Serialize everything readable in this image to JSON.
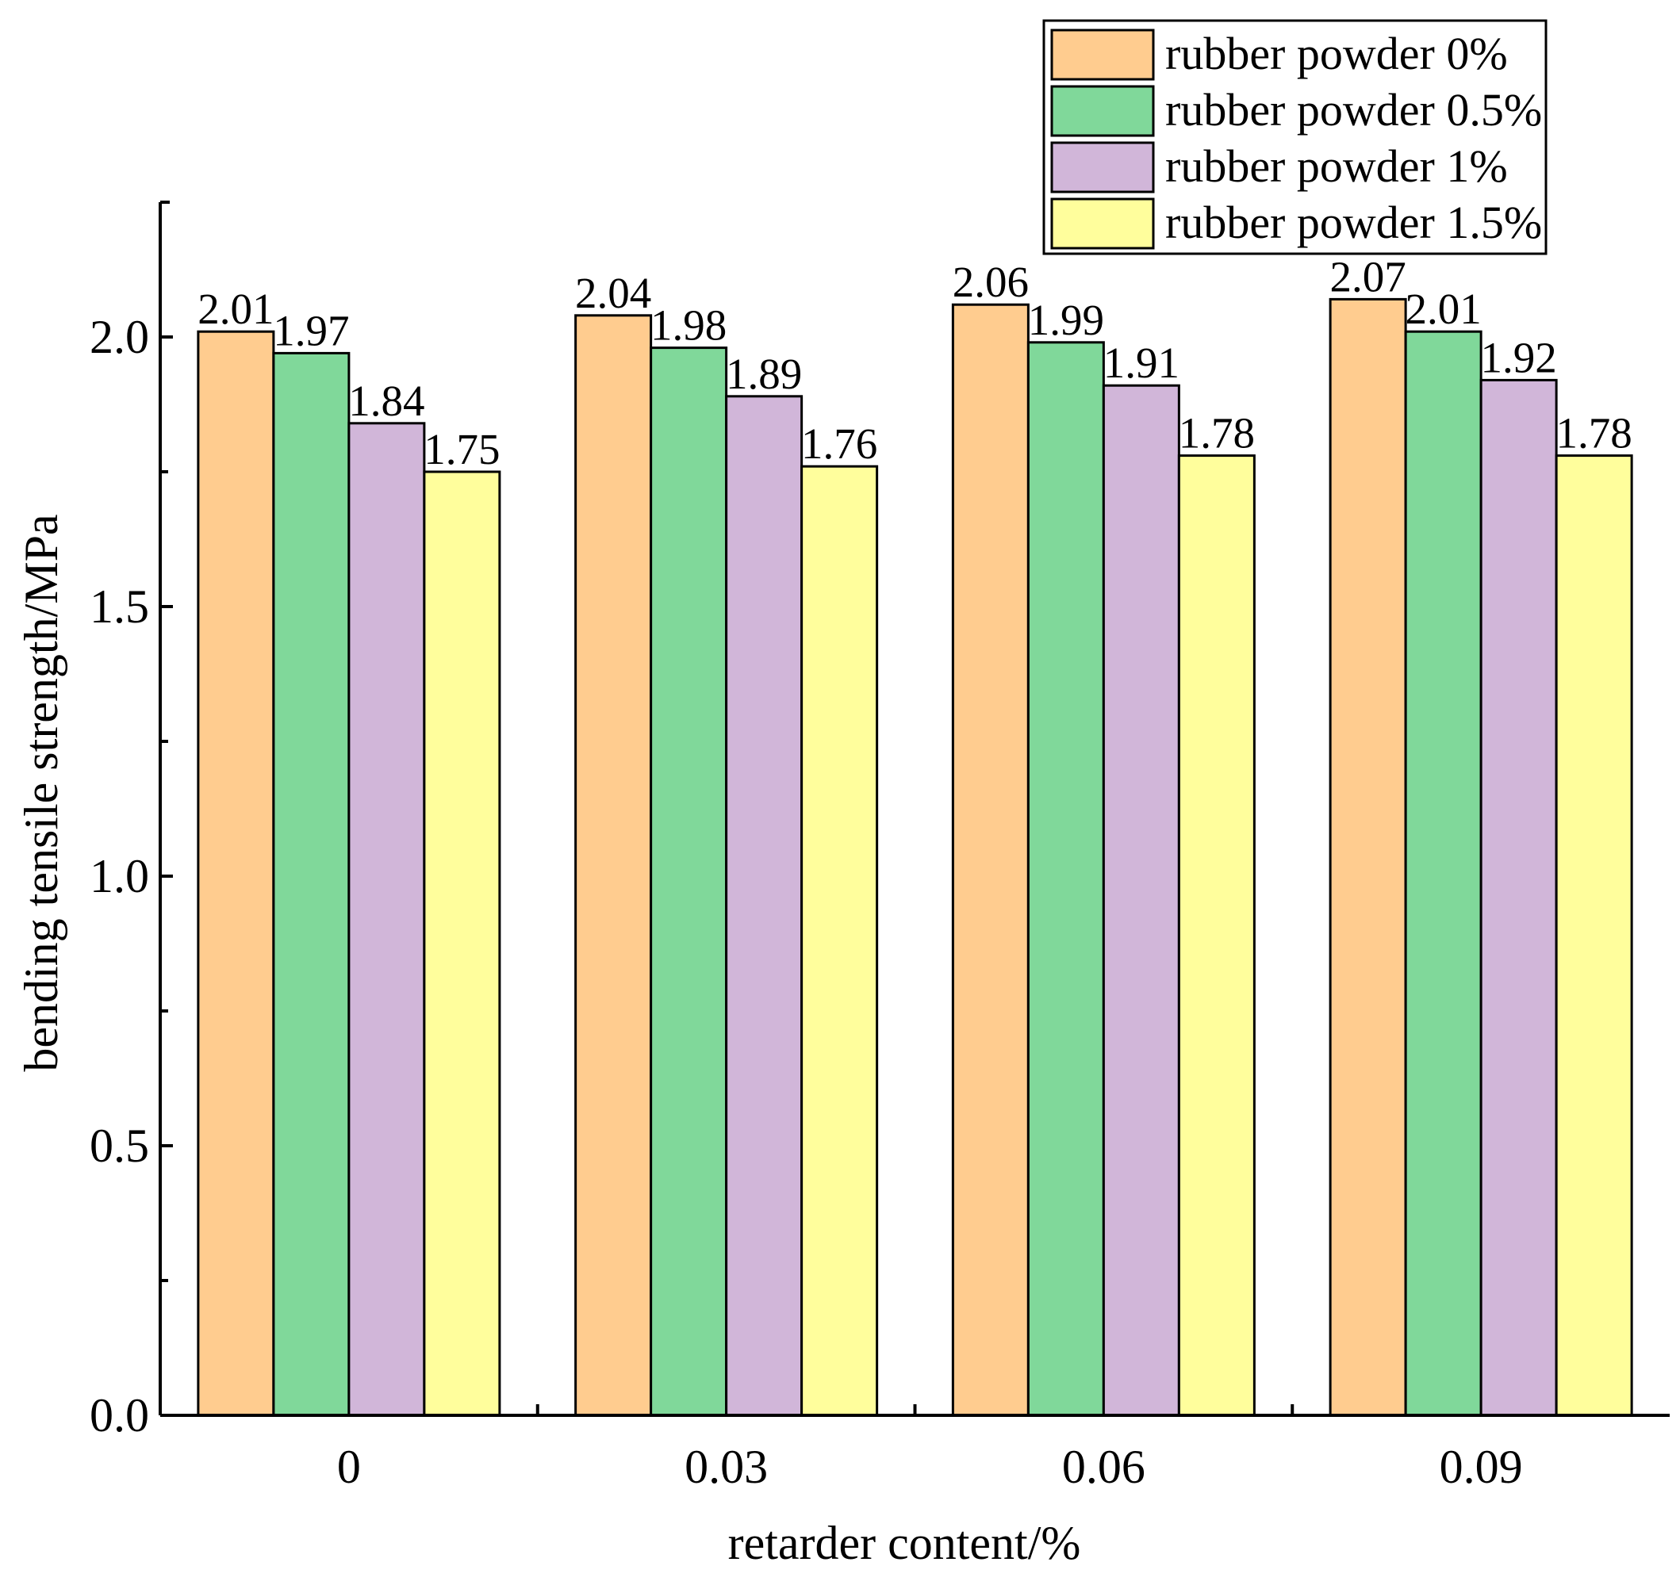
{
  "chart_data": {
    "type": "bar",
    "title": "",
    "xlabel": "retarder content/%",
    "ylabel": "bending tensile strength/MPa",
    "categories": [
      "0",
      "0.03",
      "0.06",
      "0.09"
    ],
    "series": [
      {
        "name": "rubber powder 0%",
        "color": "#FFCC8F",
        "values": [
          2.01,
          2.04,
          2.06,
          2.07
        ],
        "labels": [
          "2.01",
          "2.04",
          "2.06",
          "2.07"
        ]
      },
      {
        "name": "rubber powder 0.5%",
        "color": "#80D89A",
        "values": [
          1.97,
          1.98,
          1.99,
          2.01
        ],
        "labels": [
          "1.97",
          "1.98",
          "1.99",
          "2.01"
        ]
      },
      {
        "name": "rubber powder 1%",
        "color": "#D1B6D9",
        "values": [
          1.84,
          1.89,
          1.91,
          1.92
        ],
        "labels": [
          "1.84",
          "1.89",
          "1.91",
          "1.92"
        ]
      },
      {
        "name": "rubber powder 1.5%",
        "color": "#FFFE9C",
        "values": [
          1.75,
          1.76,
          1.78,
          1.78
        ],
        "labels": [
          "1.75",
          "1.76",
          "1.78",
          "1.78"
        ]
      }
    ],
    "ylim": [
      0,
      2.25
    ],
    "yticks": [
      {
        "value": 0.0,
        "label": "0.0"
      },
      {
        "value": 0.5,
        "label": "0.5"
      },
      {
        "value": 1.0,
        "label": "1.0"
      },
      {
        "value": 1.5,
        "label": "1.5"
      },
      {
        "value": 2.0,
        "label": "2.0"
      }
    ],
    "yminor_ticks": [
      0.25,
      0.75,
      1.25,
      1.75
    ],
    "grid": false,
    "legend": {
      "position": "top-right"
    }
  }
}
